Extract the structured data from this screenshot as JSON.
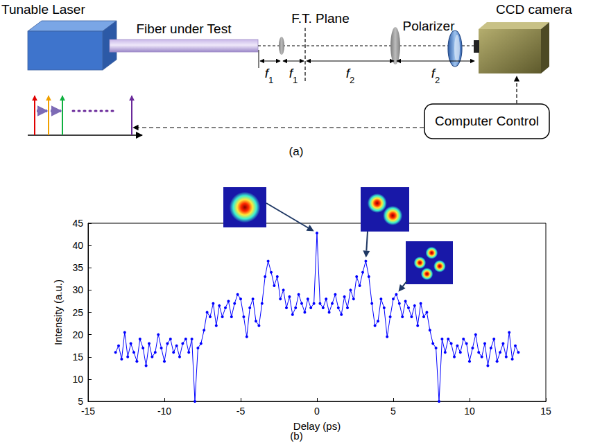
{
  "diagram": {
    "labels": {
      "laser": "Tunable Laser",
      "fiber": "Fiber under Test",
      "ft_plane": "F.T. Plane",
      "polarizer": "Polarizer",
      "camera": "CCD camera",
      "control": "Computer Control"
    },
    "focal_lengths": [
      "f1",
      "f1",
      "f2",
      "f2"
    ],
    "caption": "(a)"
  },
  "chart_data": {
    "type": "line",
    "x_label": "Delay (ps)",
    "y_label": "Intensity (a.u.)",
    "caption": "(b)",
    "color": "#0000ff",
    "marker": "circle",
    "line_style": "solid",
    "grid": false,
    "xlim": [
      -15,
      15
    ],
    "xticks": [
      -15,
      -10,
      -5,
      0,
      5,
      10,
      15
    ],
    "ylim": [
      5,
      45
    ],
    "yticks": [
      5,
      10,
      15,
      20,
      25,
      30,
      35,
      40,
      45
    ],
    "x": [
      -13.2,
      -13,
      -12.8,
      -12.6,
      -12.4,
      -12.2,
      -12,
      -11.8,
      -11.6,
      -11.4,
      -11.2,
      -11,
      -10.8,
      -10.6,
      -10.4,
      -10.2,
      -10,
      -9.8,
      -9.6,
      -9.4,
      -9.2,
      -9,
      -8.8,
      -8.6,
      -8.4,
      -8.2,
      -8,
      -7.8,
      -7.6,
      -7.4,
      -7.2,
      -7,
      -6.8,
      -6.6,
      -6.4,
      -6.2,
      -6,
      -5.8,
      -5.6,
      -5.4,
      -5.2,
      -5,
      -4.8,
      -4.6,
      -4.4,
      -4.2,
      -4,
      -3.8,
      -3.6,
      -3.4,
      -3.2,
      -3,
      -2.8,
      -2.6,
      -2.4,
      -2.2,
      -2,
      -1.8,
      -1.6,
      -1.4,
      -1.2,
      -1,
      -0.8,
      -0.6,
      -0.4,
      -0.2,
      0,
      0.2,
      0.4,
      0.6,
      0.8,
      1,
      1.2,
      1.4,
      1.6,
      1.8,
      2,
      2.2,
      2.4,
      2.6,
      2.8,
      3,
      3.2,
      3.4,
      3.6,
      3.8,
      4,
      4.2,
      4.4,
      4.6,
      4.8,
      5,
      5.2,
      5.4,
      5.6,
      5.8,
      6,
      6.2,
      6.4,
      6.6,
      6.8,
      7,
      7.2,
      7.4,
      7.6,
      7.8,
      8,
      8.2,
      8.4,
      8.6,
      8.8,
      9,
      9.2,
      9.4,
      9.6,
      9.8,
      10,
      10.2,
      10.4,
      10.6,
      10.8,
      11,
      11.2,
      11.4,
      11.6,
      11.8,
      12,
      12.2,
      12.4,
      12.6,
      12.8,
      13,
      13.2
    ],
    "values": [
      16,
      17.5,
      14.5,
      20.5,
      15,
      18,
      16,
      14,
      19,
      17,
      13,
      18,
      15,
      16,
      20,
      17,
      14,
      18,
      19,
      16,
      17.5,
      15,
      18,
      19,
      16,
      19,
      5,
      17,
      18,
      21,
      25,
      24,
      27,
      22,
      26.5,
      24,
      26,
      27.5,
      24,
      27,
      29,
      28,
      24,
      19.5,
      26,
      28,
      23,
      22,
      27,
      33,
      36.5,
      34,
      31,
      33,
      28,
      30,
      26,
      28.5,
      24.5,
      26,
      29,
      27,
      25,
      28,
      26,
      27,
      42.8,
      27,
      26,
      28,
      25,
      27,
      29,
      26,
      24.5,
      28.5,
      26,
      30,
      28,
      33,
      31,
      34,
      36.5,
      33,
      27,
      22,
      23,
      28,
      26,
      19.5,
      24,
      28,
      29,
      27,
      24,
      27.5,
      26,
      24,
      26.5,
      22,
      27,
      24,
      25,
      21,
      18,
      17,
      5,
      19,
      16,
      19,
      18,
      15,
      17.5,
      16,
      19,
      18,
      14,
      17,
      20,
      16,
      15,
      18,
      13,
      17,
      19,
      14,
      16,
      18,
      15,
      20.5,
      14.5,
      17.5,
      16
    ],
    "annotations": [
      {
        "x": 0,
        "lobes": 1
      },
      {
        "x": 3.2,
        "lobes": 2
      },
      {
        "x": 5.2,
        "lobes": 4
      }
    ]
  }
}
